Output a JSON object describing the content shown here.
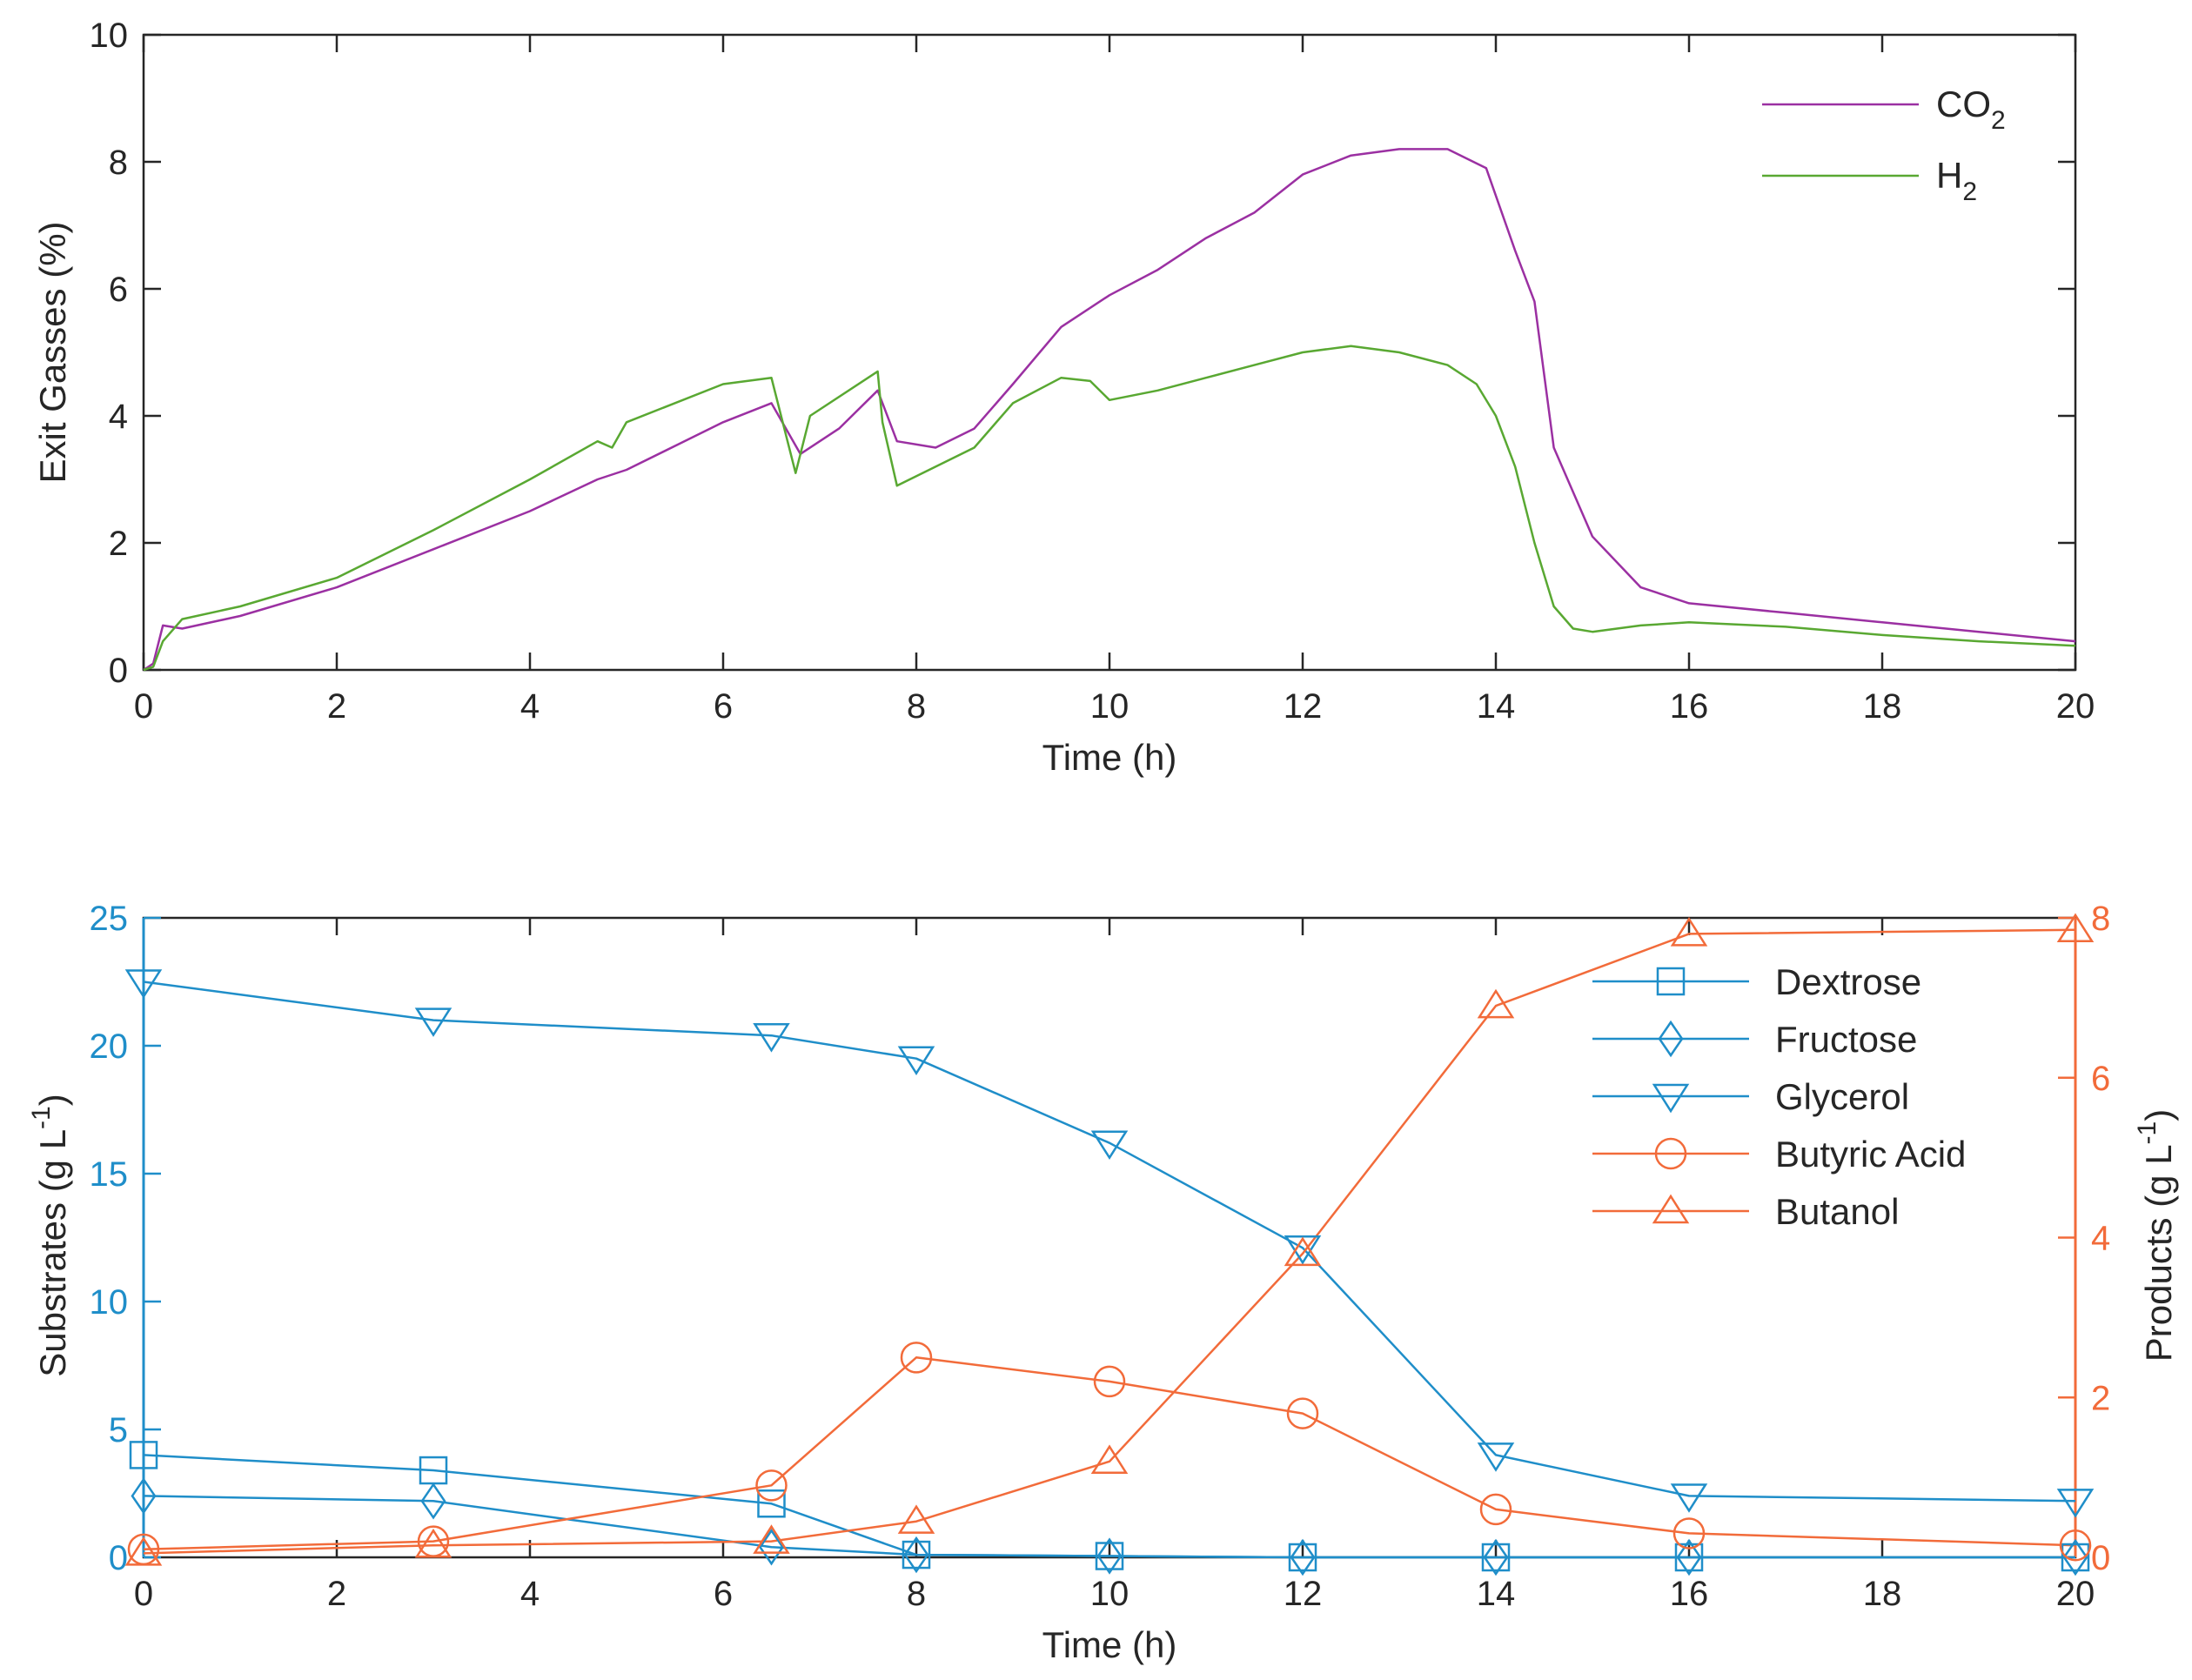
{
  "chart_data": [
    {
      "type": "line",
      "ylabel": "Exit Gasses (%)",
      "xlabel": "Time (h)",
      "xlim": [
        0,
        20
      ],
      "ylim": [
        0,
        10
      ],
      "xticks": [
        0,
        2,
        4,
        6,
        8,
        10,
        12,
        14,
        16,
        18,
        20
      ],
      "yticks": [
        0,
        2,
        4,
        6,
        8,
        10
      ],
      "legend_position": "top-right",
      "series": [
        {
          "name": "CO2",
          "legend_main": "CO",
          "legend_sub": "2",
          "color": "#9b30a2",
          "x": [
            0,
            0.1,
            0.2,
            0.4,
            1,
            2,
            3,
            4,
            4.7,
            5,
            6,
            6.5,
            6.8,
            7.2,
            7.6,
            7.8,
            8.2,
            8.6,
            9,
            9.5,
            10,
            10.5,
            11,
            11.5,
            12,
            12.5,
            13,
            13.5,
            13.9,
            14.2,
            14.4,
            14.6,
            15,
            15.5,
            16,
            17,
            18,
            19,
            20
          ],
          "y": [
            0,
            0.1,
            0.7,
            0.65,
            0.85,
            1.3,
            1.9,
            2.5,
            3.0,
            3.15,
            3.9,
            4.2,
            3.4,
            3.8,
            4.4,
            3.6,
            3.5,
            3.8,
            4.5,
            5.4,
            5.9,
            6.3,
            6.8,
            7.2,
            7.8,
            8.1,
            8.2,
            8.2,
            7.9,
            6.6,
            5.8,
            3.5,
            2.1,
            1.3,
            1.05,
            0.9,
            0.75,
            0.6,
            0.45
          ]
        },
        {
          "name": "H2",
          "legend_main": "H",
          "legend_sub": "2",
          "color": "#59a832",
          "x": [
            0,
            0.1,
            0.2,
            0.4,
            1,
            2,
            3,
            4,
            4.7,
            4.85,
            5,
            6,
            6.5,
            6.75,
            6.9,
            7.6,
            7.65,
            7.8,
            8.2,
            8.6,
            9,
            9.5,
            9.8,
            10,
            10.5,
            11,
            11.5,
            12,
            12.5,
            13,
            13.5,
            13.8,
            14,
            14.2,
            14.4,
            14.6,
            14.8,
            15,
            15.5,
            16,
            17,
            18,
            19,
            20
          ],
          "y": [
            0,
            0.05,
            0.45,
            0.8,
            1.0,
            1.45,
            2.2,
            3.0,
            3.6,
            3.5,
            3.9,
            4.5,
            4.6,
            3.1,
            4.0,
            4.7,
            3.9,
            2.9,
            3.2,
            3.5,
            4.2,
            4.6,
            4.55,
            4.25,
            4.4,
            4.6,
            4.8,
            5.0,
            5.1,
            5.0,
            4.8,
            4.5,
            4.0,
            3.2,
            2.0,
            1.0,
            0.65,
            0.6,
            0.7,
            0.75,
            0.68,
            0.55,
            0.45,
            0.38
          ]
        }
      ]
    },
    {
      "type": "line",
      "ylabel": "Substrates (g L",
      "ylabel_sup": "-1",
      "ylabel_end": ")",
      "y2label": "Products (g L",
      "y2label_sup": "-1",
      "y2label_end": ")",
      "xlabel": "Time (h)",
      "xlim": [
        0,
        20
      ],
      "ylim": [
        0,
        25
      ],
      "y2lim": [
        0,
        8
      ],
      "xticks": [
        0,
        2,
        4,
        6,
        8,
        10,
        12,
        14,
        16,
        18,
        20
      ],
      "yticks": [
        0,
        5,
        10,
        15,
        20,
        25
      ],
      "y2ticks": [
        0,
        2,
        4,
        6,
        8
      ],
      "legend_position": "top-right",
      "x": [
        0,
        3,
        6.5,
        8,
        10,
        12,
        14,
        16,
        20
      ],
      "series": [
        {
          "name": "Dextrose",
          "axis": "left",
          "marker": "square",
          "color": "#1f8ec9",
          "values": [
            4.0,
            3.4,
            2.1,
            0.1,
            0.05,
            0,
            0,
            0,
            0
          ]
        },
        {
          "name": "Fructose",
          "axis": "left",
          "marker": "diamond",
          "color": "#1f8ec9",
          "values": [
            2.4,
            2.2,
            0.4,
            0.1,
            0.05,
            0,
            0,
            0,
            0
          ]
        },
        {
          "name": "Glycerol",
          "axis": "left",
          "marker": "triangle-down",
          "color": "#1f8ec9",
          "values": [
            22.5,
            21.0,
            20.4,
            19.5,
            16.2,
            12.1,
            4.0,
            2.4,
            2.2
          ]
        },
        {
          "name": "Butyric Acid",
          "axis": "right",
          "marker": "circle",
          "color": "#f26b3a",
          "values": [
            0.1,
            0.2,
            0.9,
            2.5,
            2.2,
            1.8,
            0.6,
            0.3,
            0.15
          ]
        },
        {
          "name": "Butanol",
          "axis": "right",
          "marker": "triangle-up",
          "color": "#f26b3a",
          "values": [
            0.05,
            0.15,
            0.2,
            0.45,
            1.2,
            3.8,
            6.9,
            7.8,
            7.85
          ]
        }
      ],
      "left_axis_color": "#1f8ec9",
      "right_axis_color": "#f26b3a"
    }
  ]
}
